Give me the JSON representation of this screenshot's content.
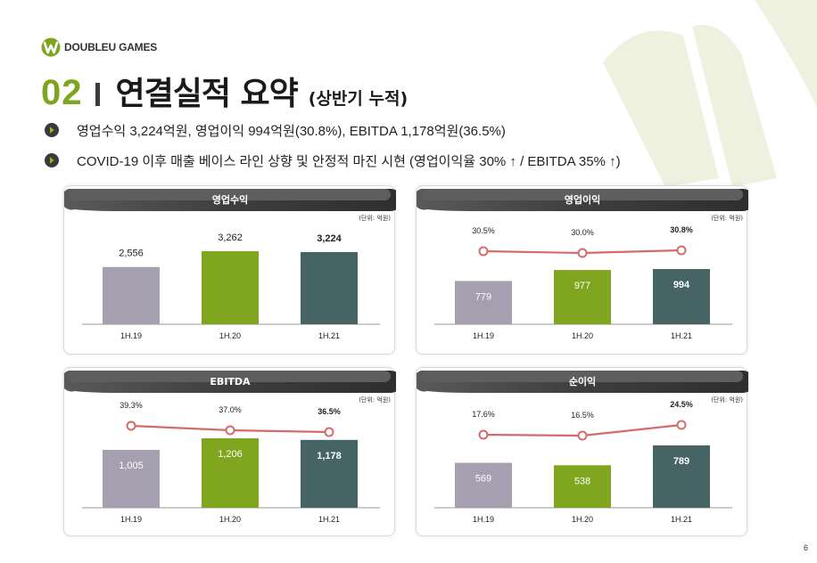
{
  "header": {
    "logo_text": "DOUBLEU GAMES",
    "section_number": "02",
    "title": "연결실적 요약",
    "subtitle": "(상반기 누적)"
  },
  "bullets": [
    "영업수익 3,224억원, 영업이익 994억원(30.8%), EBITDA 1,178억원(36.5%)",
    "COVID-19 이후 매출 베이스 라인 상향 및 안정적 마진 시현 (영업이익율 30% ↑ / EBITDA 35% ↑)"
  ],
  "colors": {
    "brand_green": "#7ea51e",
    "bar_19": "#a69fb0",
    "bar_20": "#80a61f",
    "bar_21": "#466464",
    "margin_line": "#d46a6a"
  },
  "chart_data": [
    {
      "type": "bar",
      "title": "영업수익",
      "unit_label": "(단위: 억원)",
      "categories": [
        "1H.19",
        "1H.20",
        "1H.21"
      ],
      "values": [
        2556,
        3262,
        3224
      ],
      "value_labels": [
        "2,556",
        "3,262",
        "3,224"
      ],
      "bold_last": true
    },
    {
      "type": "bar",
      "title": "영업이익",
      "unit_label": "(단위: 억원)",
      "categories": [
        "1H.19",
        "1H.20",
        "1H.21"
      ],
      "values": [
        779,
        977,
        994
      ],
      "value_labels": [
        "779",
        "977",
        "994"
      ],
      "margins": [
        30.5,
        30.0,
        30.8
      ],
      "margin_labels": [
        "30.5%",
        "30.0%",
        "30.8%"
      ],
      "bold_last": true
    },
    {
      "type": "bar",
      "title": "EBITDA",
      "unit_label": "(단위: 억원)",
      "categories": [
        "1H.19",
        "1H.20",
        "1H.21"
      ],
      "values": [
        1005,
        1206,
        1178
      ],
      "value_labels": [
        "1,005",
        "1,206",
        "1,178"
      ],
      "margins": [
        39.3,
        37.0,
        36.5
      ],
      "margin_labels": [
        "39.3%",
        "37.0%",
        "36.5%"
      ],
      "bold_last": true
    },
    {
      "type": "bar",
      "title": "순이익",
      "unit_label": "(단위: 억원)",
      "categories": [
        "1H.19",
        "1H.20",
        "1H.21"
      ],
      "values": [
        569,
        538,
        789
      ],
      "value_labels": [
        "569",
        "538",
        "789"
      ],
      "margins": [
        17.6,
        16.5,
        24.5
      ],
      "margin_labels": [
        "17.6%",
        "16.5%",
        "24.5%"
      ],
      "bold_last": true
    }
  ],
  "page_number": "6"
}
